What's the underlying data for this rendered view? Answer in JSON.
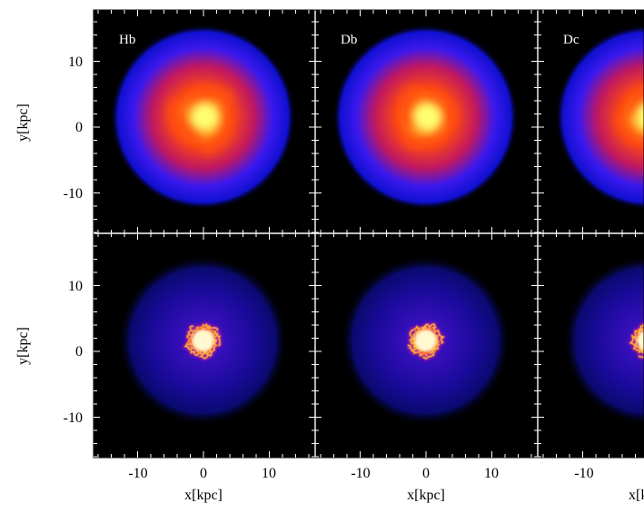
{
  "panels": [
    {
      "label": "Hb",
      "row": 0,
      "col": 0,
      "kind": "stellar",
      "pitch": 0.55,
      "rot": 0.4
    },
    {
      "label": "Db",
      "row": 0,
      "col": 1,
      "kind": "stellar",
      "pitch": 0.5,
      "rot": 1.2
    },
    {
      "label": "Dc",
      "row": 0,
      "col": 2,
      "kind": "stellar",
      "pitch": 0.5,
      "rot": 2.0
    },
    {
      "label": "",
      "row": 1,
      "col": 0,
      "kind": "gas",
      "pitch": 0.45,
      "rot": 0.8
    },
    {
      "label": "",
      "row": 1,
      "col": 1,
      "kind": "gas",
      "pitch": 0.45,
      "rot": 1.9
    },
    {
      "label": "",
      "row": 1,
      "col": 2,
      "kind": "gas",
      "pitch": 0.45,
      "rot": 2.6
    }
  ],
  "axes": {
    "xlabel": "x[kpc]",
    "ylabel": "y[kpc]",
    "x_ticks": [
      "-10",
      "0",
      "10"
    ],
    "y_ticks": [
      "10",
      "0",
      "-10"
    ],
    "range_kpc": [
      -16.5,
      16.5
    ]
  },
  "colors": {
    "background": "#000000",
    "stellar_colormap": [
      "#000000",
      "#0000cc",
      "#3a10ff",
      "#9a1870",
      "#ff1a00",
      "#ff6a00",
      "#ffee22"
    ],
    "gas_colormap": [
      "#000000",
      "#0a0a8a",
      "#2a10d0",
      "#a01080",
      "#ff3000",
      "#ffb000",
      "#fff8b0"
    ],
    "grid": "#ffffff"
  }
}
